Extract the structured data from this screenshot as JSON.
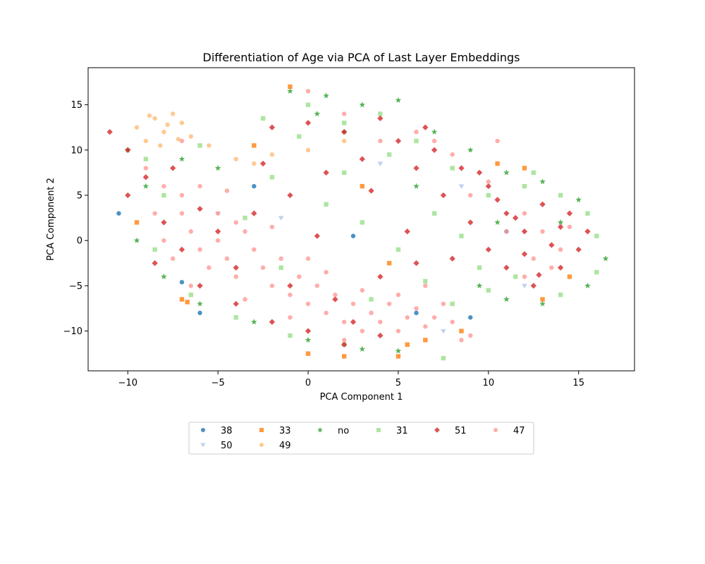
{
  "chart_data": {
    "type": "scatter",
    "title": "Differentiation of Age via PCA of Last Layer Embeddings",
    "xlabel": "PCA Component 1",
    "ylabel": "PCA Component 2",
    "xlim": [
      -12.2,
      18.1
    ],
    "ylim": [
      -14.4,
      19.1
    ],
    "xticks": [
      -10,
      -5,
      0,
      5,
      10,
      15
    ],
    "yticks": [
      -10,
      -5,
      0,
      5,
      10,
      15
    ],
    "grid": false,
    "legend_position": "below-center",
    "legend_columns": 6,
    "series": [
      {
        "name": "38",
        "marker": "circle",
        "color": "#1f77b4",
        "points": [
          [
            -10.5,
            3.0
          ],
          [
            -7.0,
            -4.6
          ],
          [
            -3.0,
            6.0
          ],
          [
            2.5,
            0.5
          ],
          [
            6.0,
            -8.0
          ],
          [
            9.0,
            -8.5
          ],
          [
            11.0,
            1.0
          ],
          [
            -6.0,
            -8.0
          ]
        ]
      },
      {
        "name": "50",
        "marker": "triangle-down",
        "color": "#aec7e8",
        "points": [
          [
            7.5,
            -10.0
          ],
          [
            4.0,
            8.5
          ],
          [
            -1.5,
            2.5
          ],
          [
            12.0,
            -5.0
          ],
          [
            -5.0,
            3.0
          ],
          [
            8.5,
            6.0
          ]
        ]
      },
      {
        "name": "33",
        "marker": "square",
        "color": "#ff7f0e",
        "points": [
          [
            -1.0,
            17.0
          ],
          [
            -7.0,
            -6.5
          ],
          [
            -6.7,
            -6.8
          ],
          [
            2.0,
            -12.8
          ],
          [
            5.0,
            -12.8
          ],
          [
            5.5,
            -11.5
          ],
          [
            6.5,
            -11.0
          ],
          [
            8.5,
            -10.0
          ],
          [
            10.5,
            8.5
          ],
          [
            14.5,
            -4.0
          ],
          [
            -3.0,
            10.5
          ],
          [
            3.0,
            6.0
          ],
          [
            4.5,
            -2.5
          ],
          [
            0.0,
            -12.5
          ],
          [
            -9.5,
            2.0
          ],
          [
            13.0,
            -6.5
          ],
          [
            12.0,
            8.0
          ]
        ]
      },
      {
        "name": "49",
        "marker": "circle",
        "color": "#ffbb78",
        "points": [
          [
            -9.5,
            12.5
          ],
          [
            -8.5,
            13.5
          ],
          [
            -8.0,
            12.0
          ],
          [
            -7.5,
            14.0
          ],
          [
            -7.0,
            13.0
          ],
          [
            -9.0,
            11.0
          ],
          [
            -8.2,
            10.5
          ],
          [
            -7.8,
            12.8
          ],
          [
            -6.5,
            11.5
          ],
          [
            -5.5,
            10.5
          ],
          [
            -4.0,
            9.0
          ],
          [
            -3.0,
            8.5
          ],
          [
            -2.0,
            9.5
          ],
          [
            0.0,
            10.0
          ],
          [
            2.0,
            11.0
          ],
          [
            -8.8,
            13.8
          ],
          [
            -7.2,
            11.2
          ]
        ]
      },
      {
        "name": "no",
        "marker": "star",
        "color": "#2ca02c",
        "points": [
          [
            -10.0,
            10.0
          ],
          [
            -9.0,
            6.0
          ],
          [
            -9.5,
            0.0
          ],
          [
            -8.0,
            -4.0
          ],
          [
            -6.0,
            -7.0
          ],
          [
            -3.0,
            -9.0
          ],
          [
            0.0,
            -11.0
          ],
          [
            3.0,
            -12.0
          ],
          [
            5.0,
            -12.2
          ],
          [
            -1.0,
            16.5
          ],
          [
            1.0,
            16.0
          ],
          [
            3.0,
            15.0
          ],
          [
            5.0,
            15.5
          ],
          [
            7.0,
            12.0
          ],
          [
            9.0,
            10.0
          ],
          [
            11.0,
            7.5
          ],
          [
            13.0,
            6.5
          ],
          [
            15.0,
            4.5
          ],
          [
            16.5,
            -2.0
          ],
          [
            15.5,
            -5.0
          ],
          [
            13.0,
            -7.0
          ],
          [
            11.0,
            -6.5
          ],
          [
            9.5,
            -5.0
          ],
          [
            14.0,
            2.0
          ],
          [
            -7.0,
            9.0
          ],
          [
            -5.0,
            8.0
          ],
          [
            2.0,
            12.0
          ],
          [
            6.0,
            6.0
          ],
          [
            10.5,
            2.0
          ],
          [
            0.5,
            14.0
          ]
        ]
      },
      {
        "name": "31",
        "marker": "square",
        "color": "#98df8a",
        "points": [
          [
            -9.0,
            9.0
          ],
          [
            -8.0,
            5.0
          ],
          [
            -8.5,
            -1.0
          ],
          [
            -6.5,
            -6.0
          ],
          [
            -4.0,
            -8.5
          ],
          [
            -1.0,
            -10.5
          ],
          [
            2.0,
            -11.5
          ],
          [
            -2.5,
            13.5
          ],
          [
            0.0,
            15.0
          ],
          [
            2.0,
            13.0
          ],
          [
            4.0,
            14.0
          ],
          [
            6.0,
            11.0
          ],
          [
            8.0,
            8.0
          ],
          [
            10.0,
            5.0
          ],
          [
            12.0,
            6.0
          ],
          [
            14.0,
            5.0
          ],
          [
            16.0,
            0.5
          ],
          [
            16.0,
            -3.5
          ],
          [
            14.0,
            -6.0
          ],
          [
            10.0,
            -5.5
          ],
          [
            8.0,
            -7.0
          ],
          [
            7.5,
            -13.0
          ],
          [
            1.0,
            4.0
          ],
          [
            3.0,
            2.0
          ],
          [
            5.0,
            -1.0
          ],
          [
            7.0,
            3.0
          ],
          [
            -2.0,
            7.0
          ],
          [
            -6.0,
            10.5
          ],
          [
            12.5,
            7.5
          ],
          [
            9.5,
            -3.0
          ],
          [
            -0.5,
            11.5
          ],
          [
            4.5,
            9.5
          ],
          [
            11.5,
            -4.0
          ],
          [
            15.5,
            3.0
          ],
          [
            -3.5,
            2.5
          ],
          [
            2.0,
            7.5
          ],
          [
            6.5,
            -4.5
          ],
          [
            8.5,
            0.5
          ],
          [
            -1.5,
            -3.0
          ],
          [
            3.5,
            -6.5
          ]
        ]
      },
      {
        "name": "51",
        "marker": "diamond",
        "color": "#d62728",
        "points": [
          [
            -11.0,
            12.0
          ],
          [
            -10.0,
            10.0
          ],
          [
            -9.0,
            7.0
          ],
          [
            -10.0,
            5.0
          ],
          [
            -8.0,
            2.0
          ],
          [
            -7.0,
            -1.0
          ],
          [
            -6.0,
            -5.0
          ],
          [
            -4.0,
            -7.0
          ],
          [
            -2.0,
            -9.0
          ],
          [
            0.0,
            -10.0
          ],
          [
            2.0,
            -11.5
          ],
          [
            4.0,
            -10.5
          ],
          [
            -2.0,
            12.5
          ],
          [
            0.0,
            13.0
          ],
          [
            2.0,
            12.0
          ],
          [
            4.0,
            13.5
          ],
          [
            5.0,
            11.0
          ],
          [
            7.0,
            10.0
          ],
          [
            8.5,
            8.0
          ],
          [
            10.0,
            6.0
          ],
          [
            11.0,
            3.0
          ],
          [
            12.0,
            1.0
          ],
          [
            13.0,
            4.0
          ],
          [
            14.0,
            1.5
          ],
          [
            15.0,
            -1.0
          ],
          [
            14.0,
            -3.0
          ],
          [
            12.5,
            -5.0
          ],
          [
            11.0,
            -3.0
          ],
          [
            10.0,
            -1.0
          ],
          [
            9.0,
            2.0
          ],
          [
            7.5,
            5.0
          ],
          [
            6.0,
            8.0
          ],
          [
            3.0,
            9.0
          ],
          [
            1.0,
            7.5
          ],
          [
            -1.0,
            5.0
          ],
          [
            -3.0,
            3.0
          ],
          [
            -5.0,
            1.0
          ],
          [
            -4.0,
            -3.0
          ],
          [
            -1.0,
            -5.0
          ],
          [
            1.5,
            -6.5
          ],
          [
            4.0,
            -4.0
          ],
          [
            5.5,
            1.0
          ],
          [
            8.0,
            -2.0
          ],
          [
            12.0,
            -1.5
          ],
          [
            13.5,
            -0.5
          ],
          [
            11.5,
            2.5
          ],
          [
            14.5,
            3.0
          ],
          [
            6.5,
            12.5
          ],
          [
            3.5,
            5.5
          ],
          [
            -7.5,
            8.0
          ],
          [
            -2.5,
            8.5
          ],
          [
            0.5,
            0.5
          ],
          [
            9.5,
            7.5
          ],
          [
            -6.0,
            3.5
          ],
          [
            -8.5,
            -2.5
          ],
          [
            2.5,
            -9.0
          ],
          [
            6.0,
            -2.5
          ],
          [
            12.8,
            -3.8
          ],
          [
            10.5,
            4.5
          ],
          [
            15.5,
            1.0
          ]
        ]
      },
      {
        "name": "47",
        "marker": "circle",
        "color": "#ff9896",
        "points": [
          [
            -9.0,
            8.0
          ],
          [
            -8.0,
            6.0
          ],
          [
            -7.0,
            3.0
          ],
          [
            -6.5,
            1.0
          ],
          [
            -6.0,
            -1.0
          ],
          [
            -5.5,
            -3.0
          ],
          [
            -5.0,
            0.0
          ],
          [
            -4.5,
            -2.0
          ],
          [
            -4.0,
            -4.0
          ],
          [
            -3.5,
            1.0
          ],
          [
            -3.0,
            -1.0
          ],
          [
            -2.5,
            -3.0
          ],
          [
            -2.0,
            -5.0
          ],
          [
            -1.5,
            -2.0
          ],
          [
            -1.0,
            -6.0
          ],
          [
            -0.5,
            -4.0
          ],
          [
            0.0,
            -7.0
          ],
          [
            0.5,
            -5.0
          ],
          [
            1.0,
            -8.0
          ],
          [
            1.5,
            -6.0
          ],
          [
            2.0,
            -9.0
          ],
          [
            2.5,
            -7.0
          ],
          [
            3.0,
            -10.0
          ],
          [
            3.5,
            -8.0
          ],
          [
            4.0,
            -9.0
          ],
          [
            4.5,
            -7.0
          ],
          [
            5.0,
            -10.0
          ],
          [
            5.5,
            -8.5
          ],
          [
            6.0,
            -7.5
          ],
          [
            6.5,
            -9.5
          ],
          [
            7.0,
            -8.5
          ],
          [
            7.5,
            -7.0
          ],
          [
            8.0,
            -9.0
          ],
          [
            -7.0,
            5.0
          ],
          [
            -6.0,
            6.0
          ],
          [
            -5.0,
            3.0
          ],
          [
            -4.0,
            2.0
          ],
          [
            -8.0,
            0.0
          ],
          [
            -7.5,
            -2.0
          ],
          [
            -2.0,
            1.5
          ],
          [
            0.0,
            -2.0
          ],
          [
            1.0,
            -3.5
          ],
          [
            3.0,
            -5.5
          ],
          [
            5.0,
            -6.0
          ],
          [
            6.0,
            12.0
          ],
          [
            7.0,
            11.0
          ],
          [
            8.0,
            9.5
          ],
          [
            10.5,
            11.0
          ],
          [
            12.0,
            3.0
          ],
          [
            13.0,
            1.0
          ],
          [
            14.0,
            -1.0
          ],
          [
            13.5,
            -3.0
          ],
          [
            12.5,
            -2.0
          ],
          [
            11.0,
            1.0
          ],
          [
            9.0,
            5.0
          ],
          [
            4.0,
            11.0
          ],
          [
            2.0,
            14.0
          ],
          [
            0.0,
            16.5
          ],
          [
            14.5,
            1.5
          ],
          [
            12.0,
            -4.0
          ],
          [
            -6.5,
            -5.0
          ],
          [
            -3.5,
            -6.5
          ],
          [
            -1.0,
            -8.5
          ],
          [
            2.0,
            -11.0
          ],
          [
            8.5,
            -11.0
          ],
          [
            9.0,
            -10.5
          ],
          [
            -7.0,
            11.0
          ],
          [
            -4.5,
            5.5
          ],
          [
            -8.5,
            3.0
          ],
          [
            6.5,
            -5.0
          ],
          [
            10.0,
            6.5
          ]
        ]
      }
    ]
  }
}
